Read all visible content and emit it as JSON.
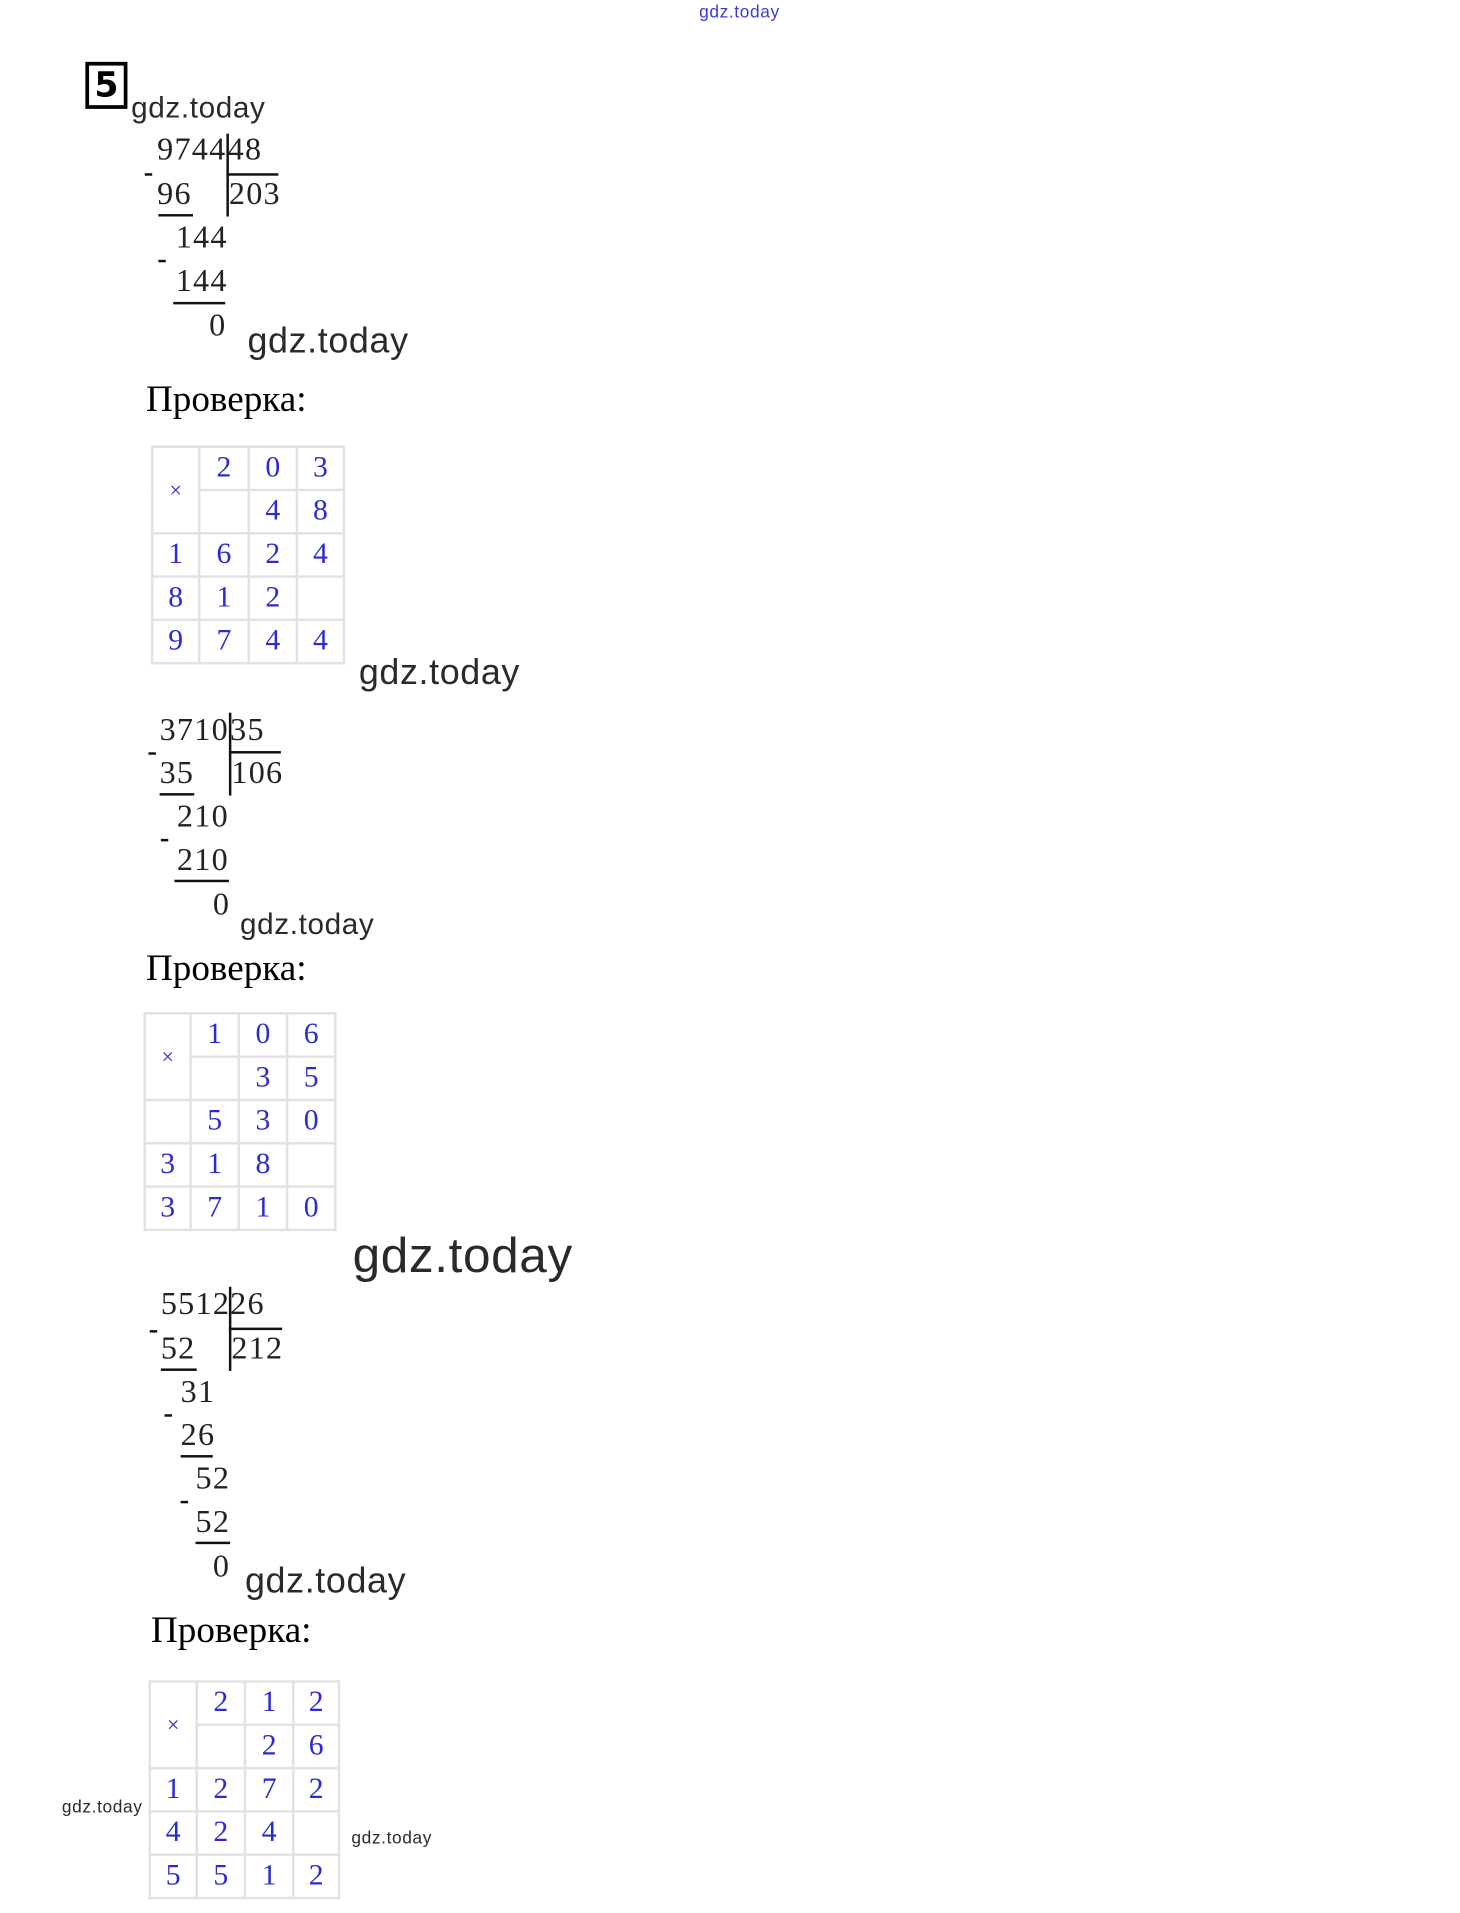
{
  "header_watermark": "gdz.today",
  "problem_number": "5",
  "watermarks": [
    "gdz.today",
    "gdz.today",
    "gdz.today",
    "gdz.today",
    "gdz.today",
    "gdz.today",
    "gdz.today",
    "gdz.today"
  ],
  "check_label": "Проверка:",
  "divisions": [
    {
      "dividend": "9744",
      "divisor": "48",
      "quotient": "203",
      "steps": [
        "96",
        "144",
        "144",
        "0"
      ]
    },
    {
      "dividend": "3710",
      "divisor": "35",
      "quotient": "106",
      "steps": [
        "35",
        "210",
        "210",
        "0"
      ]
    },
    {
      "dividend": "5512",
      "divisor": "26",
      "quotient": "212",
      "steps": [
        "52",
        "31",
        "26",
        "52",
        "52",
        "0"
      ]
    }
  ],
  "checks": [
    {
      "multiply_sign": "×",
      "rows": [
        [
          "2",
          "0",
          "3"
        ],
        [
          "",
          "4",
          "8"
        ],
        [
          "1",
          "6",
          "2",
          "4"
        ],
        [
          "8",
          "1",
          "2",
          ""
        ],
        [
          "9",
          "7",
          "4",
          "4"
        ]
      ]
    },
    {
      "multiply_sign": "×",
      "rows": [
        [
          "1",
          "0",
          "6"
        ],
        [
          "",
          "3",
          "5"
        ],
        [
          "",
          "5",
          "3",
          "0"
        ],
        [
          "3",
          "1",
          "8",
          ""
        ],
        [
          "3",
          "7",
          "1",
          "0"
        ]
      ]
    },
    {
      "multiply_sign": "×",
      "rows": [
        [
          "2",
          "1",
          "2"
        ],
        [
          "",
          "2",
          "6"
        ],
        [
          "1",
          "2",
          "7",
          "2"
        ],
        [
          "4",
          "2",
          "4",
          ""
        ],
        [
          "5",
          "5",
          "1",
          "2"
        ]
      ]
    }
  ],
  "colors": {
    "table_digits": "#2b2bd0",
    "header_watermark": "#3a3ad8"
  }
}
